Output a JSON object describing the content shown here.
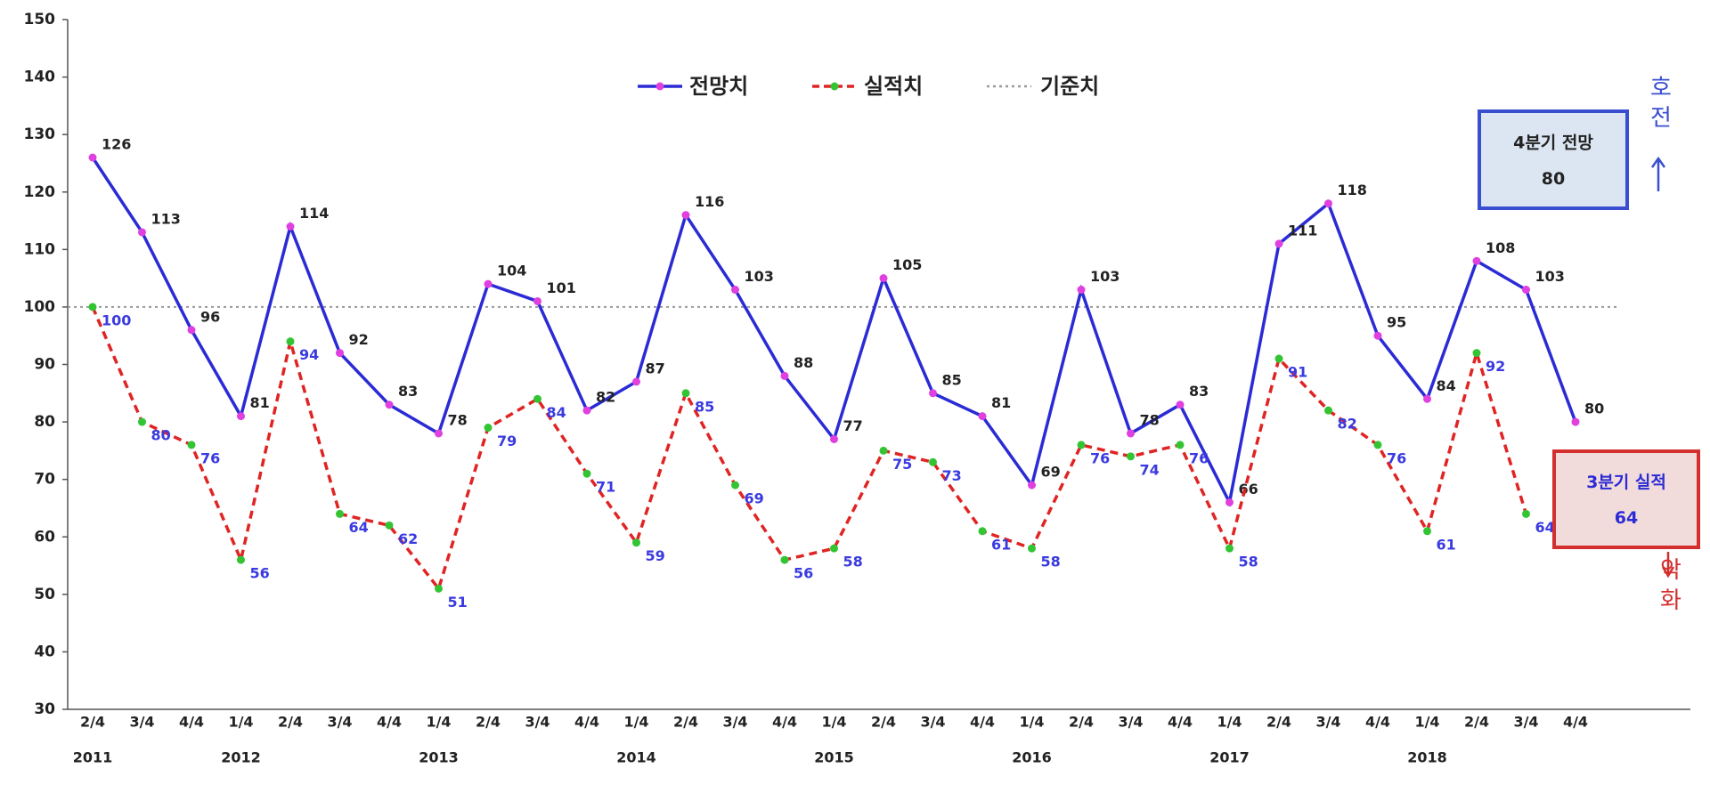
{
  "chart_data": {
    "type": "line",
    "categories": [
      "2/4",
      "3/4",
      "4/4",
      "1/4",
      "2/4",
      "3/4",
      "4/4",
      "1/4",
      "2/4",
      "3/4",
      "4/4",
      "1/4",
      "2/4",
      "3/4",
      "4/4",
      "1/4",
      "2/4",
      "3/4",
      "4/4",
      "1/4",
      "2/4",
      "3/4",
      "4/4",
      "1/4",
      "2/4",
      "3/4",
      "4/4",
      "1/4",
      "2/4",
      "3/4",
      "4/4"
    ],
    "category_years": [
      "2011",
      null,
      null,
      "2012",
      null,
      null,
      null,
      "2013",
      null,
      null,
      null,
      "2014",
      null,
      null,
      null,
      "2015",
      null,
      null,
      null,
      "2016",
      null,
      null,
      null,
      "2017",
      null,
      null,
      null,
      "2018",
      null,
      null,
      null
    ],
    "series": [
      {
        "name": "전망치",
        "color": "#2b2bd6",
        "marker_color": "#e040e0",
        "label_color": "#222222",
        "dashed": false,
        "values": [
          126,
          113,
          96,
          81,
          114,
          92,
          83,
          78,
          104,
          101,
          82,
          87,
          116,
          103,
          88,
          77,
          105,
          85,
          81,
          69,
          103,
          78,
          83,
          66,
          111,
          118,
          95,
          84,
          108,
          103,
          80
        ]
      },
      {
        "name": "실적치",
        "color": "#e02424",
        "marker_color": "#33c433",
        "label_color": "#3a3ae0",
        "dashed": true,
        "values": [
          100,
          80,
          76,
          56,
          94,
          64,
          62,
          51,
          79,
          84,
          71,
          59,
          85,
          69,
          56,
          58,
          75,
          73,
          61,
          58,
          76,
          74,
          76,
          58,
          91,
          82,
          76,
          61,
          92,
          64,
          null
        ]
      }
    ],
    "reference": {
      "name": "기준치",
      "value": 100,
      "color": "#999999"
    },
    "ylim": [
      30,
      150
    ],
    "yticks": [
      30,
      40,
      50,
      60,
      70,
      80,
      90,
      100,
      110,
      120,
      130,
      140,
      150
    ],
    "annotations": [
      {
        "title": "4분기 전망",
        "value": 80,
        "fill": "#dce6f2",
        "border": "#3a4fd0"
      },
      {
        "title": "3분기 실적",
        "value": 64,
        "fill": "#f2dcdb",
        "border": "#d32f2f"
      }
    ],
    "improve_label": "호전",
    "worsen_label": "악화"
  }
}
